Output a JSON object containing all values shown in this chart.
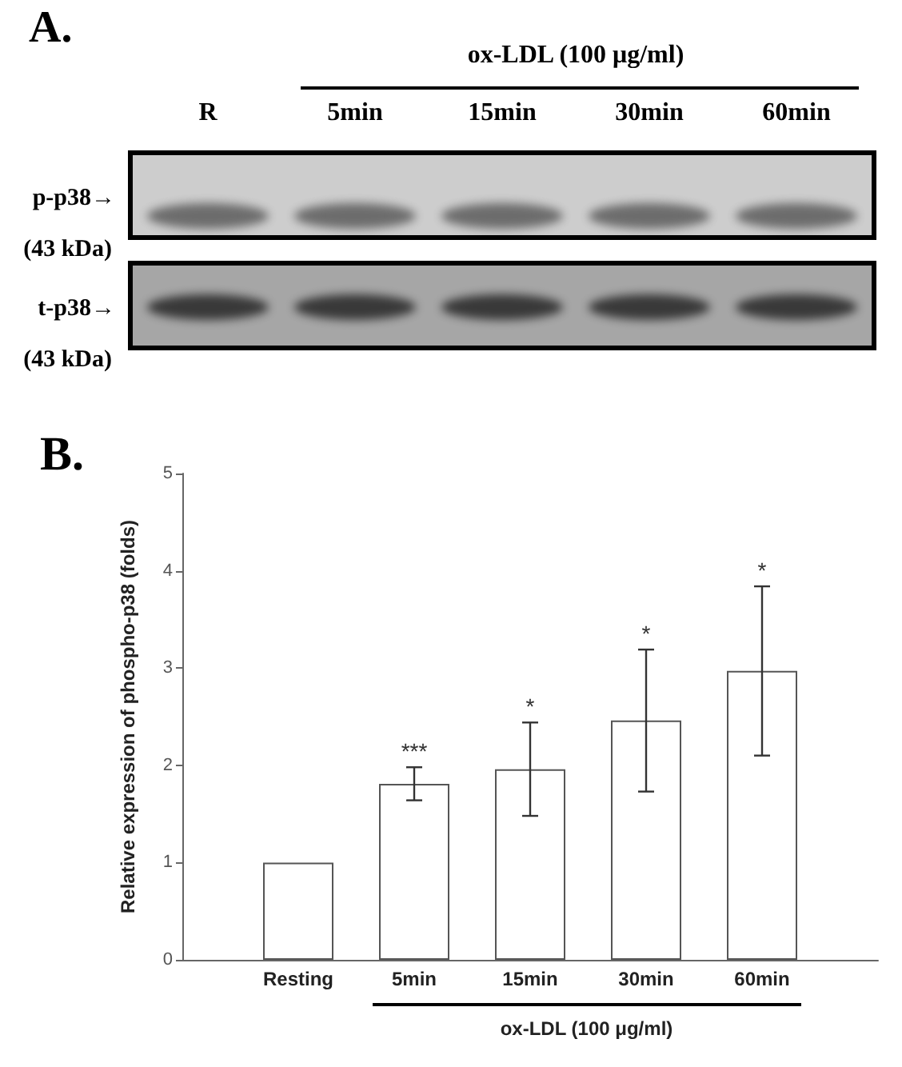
{
  "chart_data": [
    {
      "type": "other",
      "title": "A.",
      "subtitle": "ox-LDL (100 μg/ml)",
      "categories": [
        "R",
        "5min",
        "15min",
        "30min",
        "60min"
      ],
      "annotations": [
        "p-p38→",
        "(43 kDa)",
        "t-p38→",
        "(43 kDa)"
      ]
    },
    {
      "type": "bar",
      "title": "B.",
      "ylabel": "Relative expression of phospho-p38 (folds)",
      "xlabel": "ox-LDL (100 μg/ml)",
      "categories": [
        null,
        "Resting",
        "5min",
        "15min",
        "30min",
        "60min",
        null
      ],
      "values": [
        null,
        1,
        1.81,
        1.96,
        2.46,
        2.97,
        null
      ],
      "color": "#ffffff",
      "errors": [
        null,
        null,
        0.17,
        0.48,
        0.73,
        0.87,
        null
      ],
      "ylim": [
        0,
        5
      ],
      "yticks": [
        0,
        1,
        2,
        3,
        4,
        5
      ],
      "grid": false,
      "annotations": [
        {
          "text": "***",
          "x": "5min",
          "y": 1.98
        },
        {
          "text": "*",
          "x": "15min",
          "y": 2.44
        },
        {
          "text": "*",
          "x": "30min",
          "y": 3.19
        },
        {
          "text": "*",
          "x": "60min",
          "y": 3.84
        }
      ]
    }
  ]
}
